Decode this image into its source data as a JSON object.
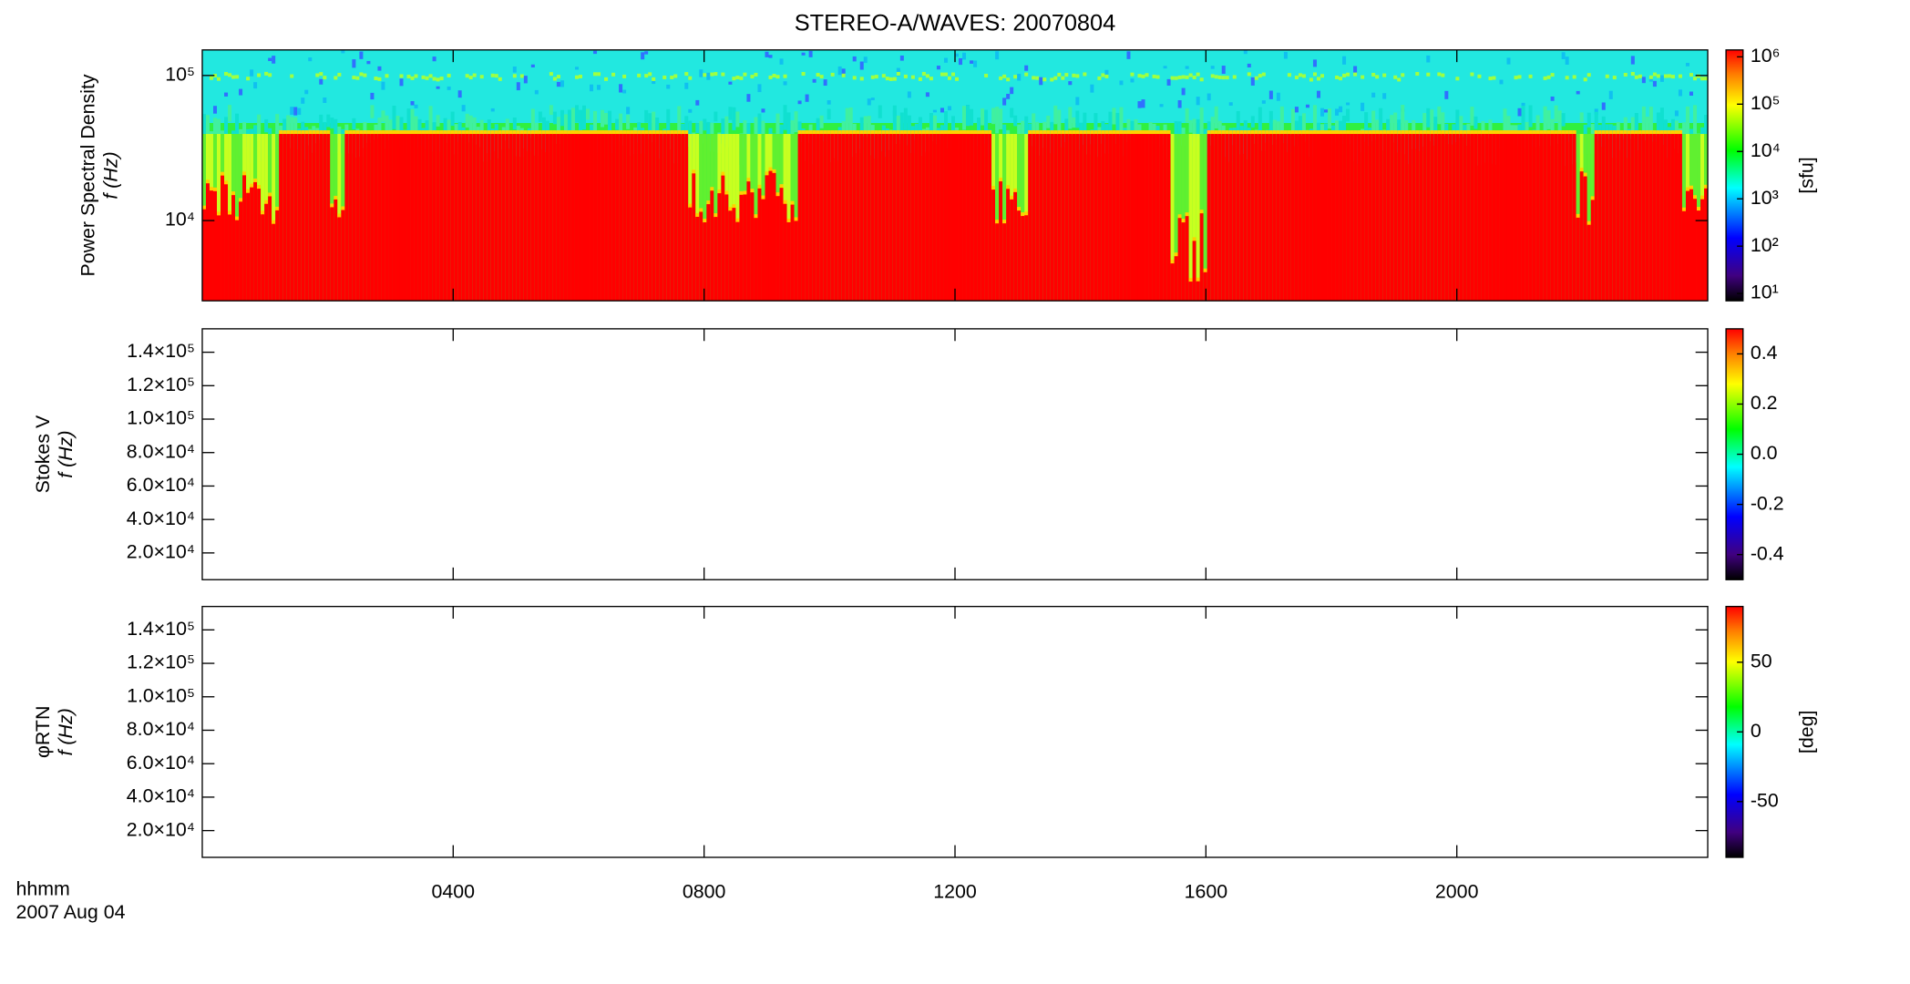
{
  "chart_data": [
    {
      "type": "spectrogram",
      "title": "STEREO-A/WAVES: 20070804",
      "ylabel": "Power Spectral Density",
      "ylabel2": "f (Hz)",
      "log_y": true,
      "ylim": [
        2800,
        150000
      ],
      "yticks": [
        {
          "value": 10000,
          "label": "10⁴"
        },
        {
          "value": 100000,
          "label": "10⁵"
        }
      ],
      "colormap": "rainbow",
      "colorbar_log": true,
      "clim": [
        7,
        1400000
      ],
      "cticks": [
        {
          "value": 10,
          "label": "10¹"
        },
        {
          "value": 100,
          "label": "10²"
        },
        {
          "value": 1000,
          "label": "10³"
        },
        {
          "value": 10000,
          "label": "10⁴"
        },
        {
          "value": 100000,
          "label": "10⁵"
        },
        {
          "value": 1000000,
          "label": "10⁶"
        }
      ],
      "clabel": "[sfu]"
    },
    {
      "type": "spectrogram",
      "ylabel": "Stokes V",
      "ylabel2": "f (Hz)",
      "log_y": false,
      "ylim": [
        4000,
        154000
      ],
      "yticks": [
        {
          "value": 20000,
          "label": "2.0×10⁴"
        },
        {
          "value": 40000,
          "label": "4.0×10⁴"
        },
        {
          "value": 60000,
          "label": "6.0×10⁴"
        },
        {
          "value": 80000,
          "label": "8.0×10⁴"
        },
        {
          "value": 100000,
          "label": "1.0×10⁵"
        },
        {
          "value": 120000,
          "label": "1.2×10⁵"
        },
        {
          "value": 140000,
          "label": "1.4×10⁵"
        }
      ],
      "colormap": "rainbow",
      "colorbar_log": false,
      "clim": [
        -0.5,
        0.5
      ],
      "cticks": [
        -0.4,
        -0.2,
        {
          "value": 0,
          "label": "0.0"
        },
        0.2,
        0.4
      ]
    },
    {
      "type": "spectrogram",
      "ylabel": "φRTN",
      "ylabel2": "f (Hz)",
      "log_y": false,
      "ylim": [
        4000,
        154000
      ],
      "yticks": [
        {
          "value": 20000,
          "label": "2.0×10⁴"
        },
        {
          "value": 40000,
          "label": "4.0×10⁴"
        },
        {
          "value": 60000,
          "label": "6.0×10⁴"
        },
        {
          "value": 80000,
          "label": "8.0×10⁴"
        },
        {
          "value": 100000,
          "label": "1.0×10⁵"
        },
        {
          "value": 120000,
          "label": "1.2×10⁵"
        },
        {
          "value": 140000,
          "label": "1.4×10⁵"
        }
      ],
      "colormap": "rainbow",
      "colorbar_log": false,
      "clim": [
        -90,
        90
      ],
      "cticks": [
        -50,
        0,
        50
      ],
      "clabel": "[deg]",
      "xlim": [
        0,
        24
      ],
      "xticks": [
        {
          "value": 4,
          "label": "0400"
        },
        {
          "value": 8,
          "label": "0800"
        },
        {
          "value": 12,
          "label": "1200"
        },
        {
          "value": 16,
          "label": "1600"
        },
        {
          "value": 20,
          "label": "2000"
        }
      ],
      "xlabel": "hhmm",
      "date": "2007 Aug 04"
    }
  ]
}
